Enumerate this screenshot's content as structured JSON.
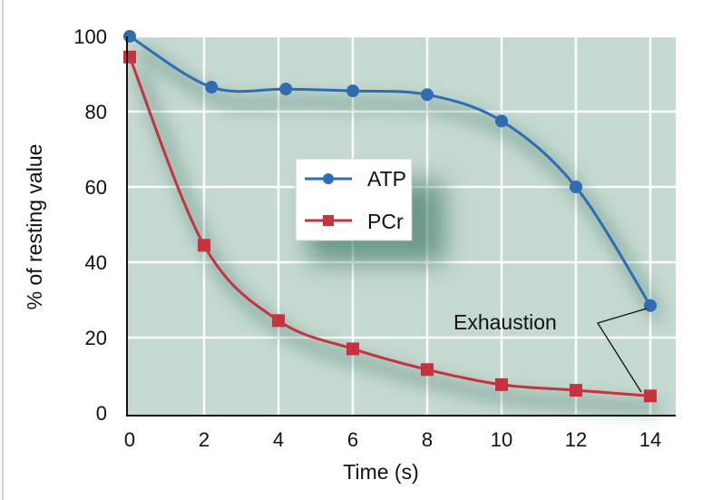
{
  "chart_data": {
    "type": "line",
    "title": "",
    "xlabel": "Time (s)",
    "ylabel": "% of resting value",
    "xlim": [
      0,
      14
    ],
    "ylim": [
      0,
      100
    ],
    "x_ticks": [
      "0",
      "2",
      "4",
      "6",
      "8",
      "10",
      "12",
      "14"
    ],
    "y_ticks": [
      "0",
      "20",
      "40",
      "60",
      "80",
      "100"
    ],
    "grid": true,
    "legend_position": "center",
    "series": [
      {
        "name": "ATP",
        "color": "#2f6db3",
        "marker": "circle",
        "x": [
          0,
          2.2,
          4.2,
          6,
          8,
          10,
          12,
          14
        ],
        "y": [
          100,
          86.5,
          86,
          85.5,
          84.5,
          77.5,
          60,
          28.5
        ]
      },
      {
        "name": "PCr",
        "color": "#c8323f",
        "marker": "square",
        "x": [
          0,
          2,
          4,
          6,
          8,
          10,
          12,
          14
        ],
        "y": [
          94.5,
          44.5,
          24.5,
          17,
          11.5,
          7.5,
          6,
          4.5
        ]
      }
    ],
    "annotations": [
      {
        "text": "Exhaustion"
      }
    ]
  }
}
